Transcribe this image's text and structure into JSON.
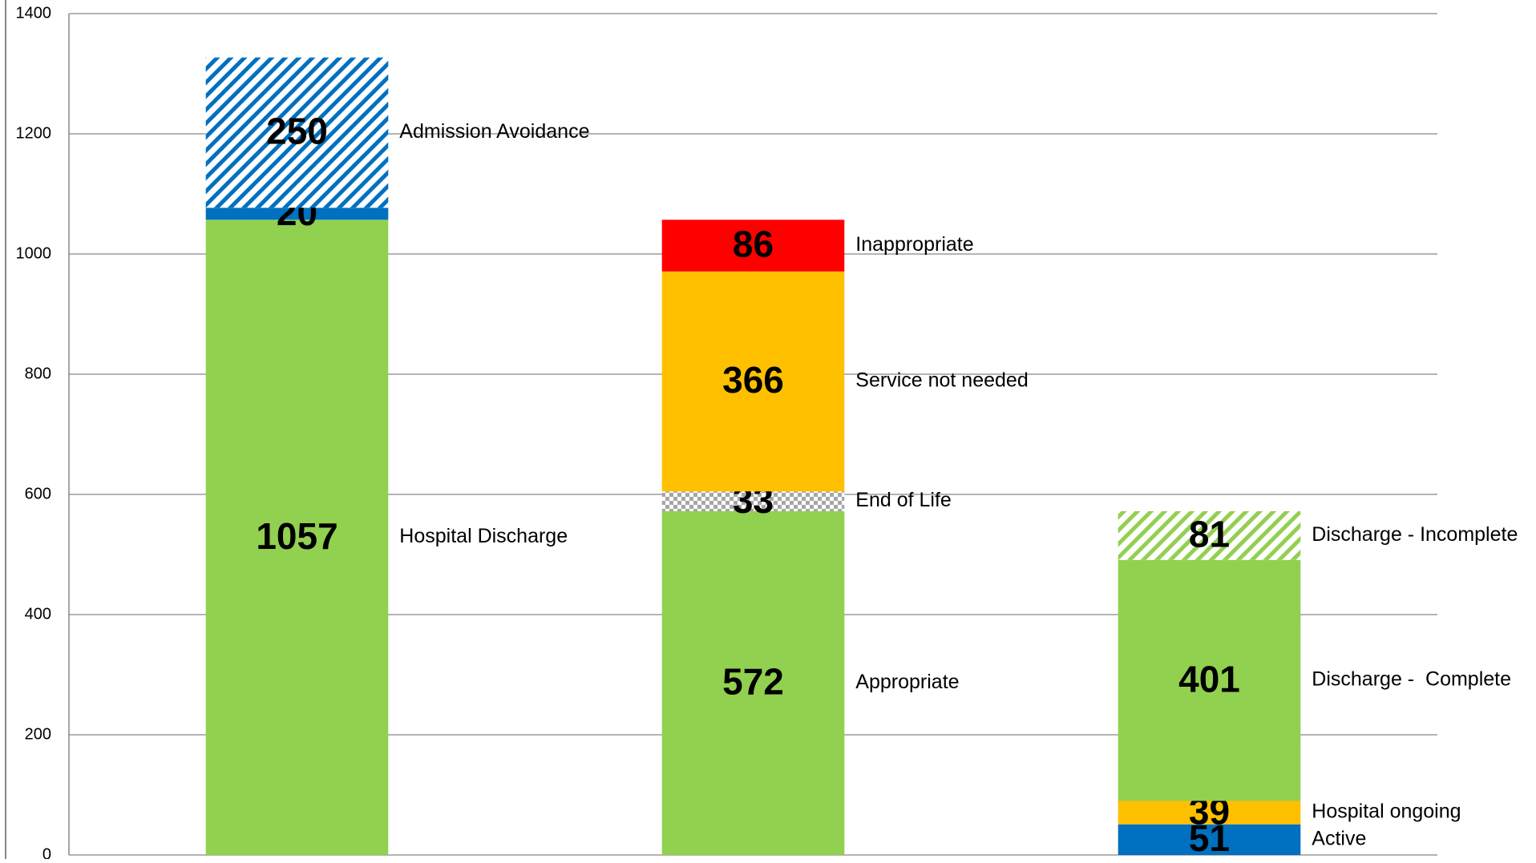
{
  "chart_data": {
    "type": "stacked-bar",
    "categories": [
      null,
      null,
      null
    ],
    "stacks": [
      [
        {
          "value": 1057,
          "name": "Hospital Discharge",
          "color": "#92d050"
        },
        {
          "value": 20,
          "color": "#0070c0"
        },
        {
          "value": 250,
          "name": "Admission Avoidance",
          "color": "#0070c0",
          "pattern": "hatch"
        }
      ],
      [
        {
          "value": 572,
          "name": "Appropriate",
          "color": "#92d050"
        },
        {
          "value": 33,
          "name": "End of Life",
          "color": "#a6a6a6",
          "pattern": "checker"
        },
        {
          "value": 366,
          "name": "Service not needed",
          "color": "#ffc000"
        },
        {
          "value": 86,
          "name": "Inappropriate",
          "color": "#ff0000"
        }
      ],
      [
        {
          "value": 51,
          "name": "Active",
          "color": "#0070c0"
        },
        {
          "value": 39,
          "name": "Hospital ongoing",
          "color": "#ffc000"
        },
        {
          "value": 401,
          "name": "Discharge -  Complete",
          "color": "#92d050"
        },
        {
          "value": 81,
          "name": "Discharge - Incomplete",
          "color": "#92d050",
          "pattern": "hatch"
        }
      ]
    ],
    "ylim": [
      0,
      1400
    ],
    "yticks": [
      0,
      200,
      400,
      600,
      800,
      1000,
      1200,
      1400
    ],
    "grid": true
  }
}
